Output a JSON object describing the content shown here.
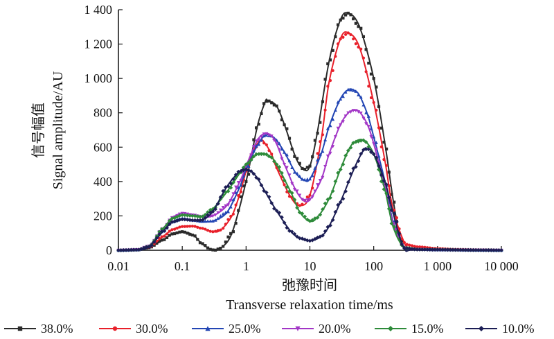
{
  "chart_data": {
    "type": "line",
    "x_scale": "log",
    "xlim": [
      0.01,
      10000
    ],
    "ylim": [
      0,
      1400
    ],
    "x_ticks": [
      {
        "value": 0.01,
        "label": "0.01"
      },
      {
        "value": 0.1,
        "label": "0.1"
      },
      {
        "value": 1,
        "label": "1"
      },
      {
        "value": 10,
        "label": "10"
      },
      {
        "value": 100,
        "label": "100"
      },
      {
        "value": 1000,
        "label": "1 000"
      },
      {
        "value": 10000,
        "label": "10 000"
      }
    ],
    "y_ticks": [
      {
        "value": 0,
        "label": "0"
      },
      {
        "value": 200,
        "label": "200"
      },
      {
        "value": 400,
        "label": "400"
      },
      {
        "value": 600,
        "label": "600"
      },
      {
        "value": 800,
        "label": "800"
      },
      {
        "value": 1000,
        "label": "1 000"
      },
      {
        "value": 1200,
        "label": "1 200"
      },
      {
        "value": 1400,
        "label": "1 400"
      }
    ],
    "xlabel_cn": "弛豫时间",
    "xlabel_en": "Transverse relaxation time/ms",
    "ylabel_cn": "信号幅值",
    "ylabel_en": "Signal amplitude/AU",
    "grid": false,
    "legend_position": "bottom",
    "series": [
      {
        "name": "38.0%",
        "color": "#2b2b2b",
        "marker": "square",
        "x": [
          0.01,
          0.02,
          0.03,
          0.05,
          0.07,
          0.1,
          0.15,
          0.2,
          0.28,
          0.32,
          0.4,
          0.6,
          1,
          1.5,
          2,
          2.2,
          3,
          4,
          6,
          8,
          10,
          13,
          20,
          30,
          40,
          60,
          100,
          150,
          200,
          250,
          300,
          400,
          600,
          1000,
          2000,
          5000,
          10000
        ],
        "y": [
          0,
          2,
          15,
          60,
          95,
          108,
          88,
          40,
          5,
          0,
          12,
          100,
          400,
          720,
          865,
          870,
          840,
          730,
          540,
          470,
          490,
          680,
          1100,
          1340,
          1380,
          1300,
          1000,
          620,
          300,
          100,
          15,
          8,
          5,
          3,
          2,
          1,
          0
        ]
      },
      {
        "name": "30.0%",
        "color": "#e8202a",
        "marker": "circle",
        "x": [
          0.01,
          0.02,
          0.03,
          0.05,
          0.07,
          0.1,
          0.15,
          0.2,
          0.3,
          0.4,
          0.6,
          0.8,
          1,
          1.3,
          1.7,
          2,
          2.5,
          3,
          5,
          7,
          10,
          15,
          20,
          30,
          40,
          60,
          100,
          150,
          200,
          300,
          350,
          500,
          1000,
          2000,
          5000,
          10000
        ],
        "y": [
          0,
          3,
          18,
          80,
          120,
          138,
          140,
          128,
          108,
          118,
          200,
          330,
          460,
          580,
          640,
          620,
          560,
          480,
          310,
          260,
          320,
          640,
          980,
          1230,
          1265,
          1180,
          860,
          520,
          240,
          45,
          30,
          20,
          10,
          5,
          2,
          0
        ]
      },
      {
        "name": "25.0%",
        "color": "#2346b4",
        "marker": "triangle-up",
        "x": [
          0.01,
          0.02,
          0.03,
          0.05,
          0.07,
          0.1,
          0.15,
          0.2,
          0.3,
          0.5,
          0.8,
          1,
          1.5,
          2,
          2.5,
          3,
          4,
          6,
          8,
          10,
          15,
          20,
          30,
          40,
          50,
          60,
          80,
          100,
          150,
          200,
          300,
          400,
          1000,
          10000
        ],
        "y": [
          0,
          3,
          22,
          110,
          165,
          185,
          175,
          168,
          170,
          220,
          370,
          470,
          610,
          670,
          665,
          640,
          570,
          450,
          410,
          415,
          560,
          720,
          880,
          935,
          930,
          900,
          790,
          660,
          400,
          170,
          18,
          8,
          3,
          0
        ]
      },
      {
        "name": "20.0%",
        "color": "#a236c6",
        "marker": "triangle-down",
        "x": [
          0.01,
          0.02,
          0.03,
          0.05,
          0.07,
          0.1,
          0.15,
          0.2,
          0.3,
          0.5,
          0.8,
          1,
          1.5,
          2,
          2.5,
          3,
          4,
          6,
          8,
          10,
          15,
          20,
          30,
          40,
          50,
          60,
          80,
          100,
          150,
          200,
          300,
          400,
          1000,
          10000
        ],
        "y": [
          0,
          3,
          25,
          125,
          190,
          215,
          205,
          195,
          200,
          260,
          400,
          490,
          640,
          680,
          665,
          620,
          500,
          350,
          290,
          295,
          410,
          560,
          730,
          800,
          815,
          805,
          730,
          620,
          370,
          160,
          15,
          6,
          2,
          0
        ]
      },
      {
        "name": "15.0%",
        "color": "#2e8b3a",
        "marker": "diamond",
        "x": [
          0.01,
          0.02,
          0.03,
          0.05,
          0.07,
          0.1,
          0.15,
          0.2,
          0.3,
          0.5,
          0.8,
          1,
          1.5,
          2,
          2.5,
          3,
          5,
          7,
          10,
          13,
          20,
          30,
          40,
          50,
          70,
          100,
          150,
          200,
          300,
          500,
          10000
        ],
        "y": [
          0,
          3,
          22,
          125,
          185,
          205,
          200,
          195,
          240,
          340,
          450,
          500,
          560,
          560,
          540,
          500,
          340,
          220,
          170,
          190,
          300,
          470,
          580,
          630,
          640,
          560,
          350,
          140,
          15,
          5,
          0
        ]
      },
      {
        "name": "10.0%",
        "color": "#1c1e55",
        "marker": "diamond",
        "x": [
          0.01,
          0.02,
          0.03,
          0.05,
          0.07,
          0.1,
          0.15,
          0.2,
          0.3,
          0.5,
          0.8,
          1,
          1.2,
          1.5,
          2,
          3,
          5,
          7,
          10,
          15,
          20,
          30,
          50,
          70,
          80,
          100,
          150,
          200,
          300,
          500,
          10000
        ],
        "y": [
          0,
          3,
          20,
          110,
          165,
          180,
          175,
          175,
          225,
          370,
          460,
          470,
          460,
          420,
          340,
          230,
          110,
          70,
          55,
          80,
          140,
          280,
          480,
          585,
          590,
          560,
          400,
          220,
          12,
          4,
          0
        ]
      }
    ]
  }
}
